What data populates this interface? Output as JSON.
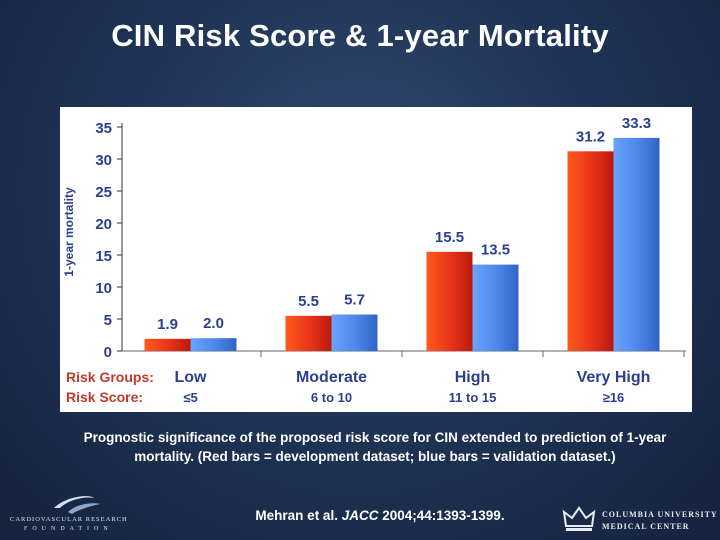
{
  "slide": {
    "title": "CIN Risk Score & 1-year Mortality",
    "caption": "Prognostic significance of the proposed risk score for CIN extended to prediction of 1-year mortality. (Red bars = development dataset; blue bars = validation dataset.)",
    "citation_prefix": "Mehran et al. ",
    "citation_journal": "JACC",
    "citation_suffix": " 2004;44:1393-1399.",
    "logo_left_line1": "CARDIOVASCULAR RESEARCH",
    "logo_left_line2": "FOUNDATION",
    "logo_right_line1": "COLUMBIA UNIVERSITY",
    "logo_right_line2": "MEDICAL CENTER"
  },
  "chart_data": {
    "type": "bar",
    "ylabel": "1-year mortality",
    "ylim": [
      0,
      35
    ],
    "yticks": [
      0,
      5,
      10,
      15,
      20,
      25,
      30,
      35
    ],
    "row_labels": {
      "groups": "Risk Groups:",
      "scores": "Risk Score:"
    },
    "categories": [
      "Low",
      "Moderate",
      "High",
      "Very High"
    ],
    "risk_scores": [
      "≤5",
      "6 to 10",
      "11 to 15",
      "≥16"
    ],
    "series": [
      {
        "name": "Development dataset",
        "color": "#e8321a",
        "values": [
          1.9,
          5.5,
          15.5,
          31.2
        ],
        "labels": [
          "1.9",
          "5.5",
          "15.5",
          "31.2"
        ]
      },
      {
        "name": "Validation dataset",
        "color": "#4d86e8",
        "values": [
          2.0,
          5.7,
          13.5,
          33.3
        ],
        "labels": [
          "2.0",
          "5.7",
          "13.5",
          "33.3"
        ]
      }
    ],
    "colors": {
      "label": "#2a3f8f",
      "risk_groups": "#c0392b"
    }
  }
}
